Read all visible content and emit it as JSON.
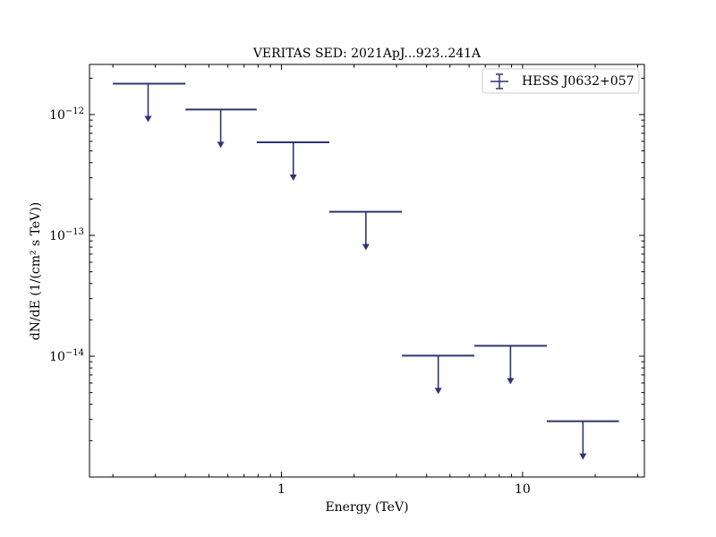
{
  "chart_data": {
    "type": "scatter",
    "title": "VERITAS SED: 2021ApJ...923..241A",
    "xlabel": "Energy (TeV)",
    "ylabel": "dN/dE (1/(cm² s TeV))",
    "xscale": "log",
    "yscale": "log",
    "xlim": [
      0.16,
      32
    ],
    "ylim": [
      1e-15,
      2.6e-12
    ],
    "x_tick_labels": [
      {
        "value": 1,
        "label": "1"
      },
      {
        "value": 10,
        "label": "10"
      }
    ],
    "y_tick_labels": [
      {
        "value": 1e-14,
        "base": "10",
        "exp": "−14"
      },
      {
        "value": 1e-13,
        "base": "10",
        "exp": "−13"
      },
      {
        "value": 1e-12,
        "base": "10",
        "exp": "−12"
      }
    ],
    "grid": false,
    "legend_position": "top-right",
    "series": [
      {
        "name": "HESS J0632+057",
        "color": "#2e3572",
        "marker": "upper-limit",
        "points": [
          {
            "x": 0.28,
            "x_low": 0.2,
            "x_high": 0.4,
            "y": 1.8e-12
          },
          {
            "x": 0.56,
            "x_low": 0.4,
            "x_high": 0.79,
            "y": 1.1e-12
          },
          {
            "x": 1.12,
            "x_low": 0.79,
            "x_high": 1.58,
            "y": 5.9e-13
          },
          {
            "x": 2.24,
            "x_low": 1.58,
            "x_high": 3.16,
            "y": 1.57e-13
          },
          {
            "x": 4.47,
            "x_low": 3.16,
            "x_high": 6.31,
            "y": 1.01e-14
          },
          {
            "x": 8.91,
            "x_low": 6.31,
            "x_high": 12.6,
            "y": 1.22e-14
          },
          {
            "x": 17.8,
            "x_low": 12.6,
            "x_high": 25.1,
            "y": 2.9e-15
          }
        ]
      }
    ]
  }
}
